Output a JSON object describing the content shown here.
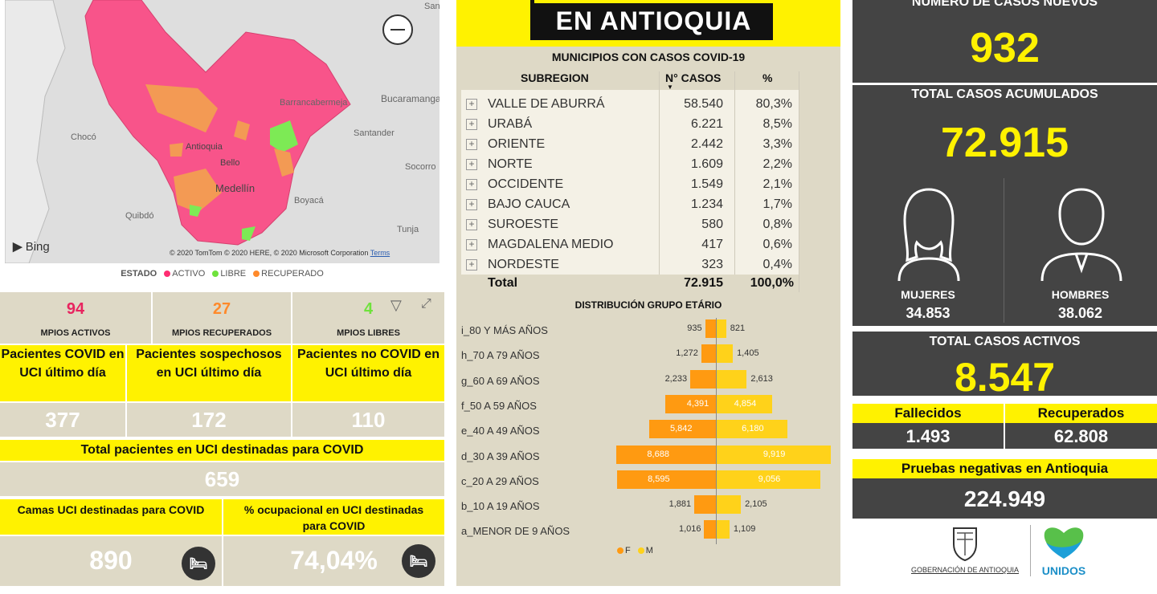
{
  "map": {
    "labels": {
      "chocó": "Chocó",
      "quibdo": "Quibdó",
      "antioquia": "Antioquia",
      "bello": "Bello",
      "medellin": "Medellín",
      "barrancabermeja": "Barrancabermeja",
      "bucaramanga": "Bucaramanga",
      "santander": "Santander",
      "socorro": "Socorro",
      "boyaca": "Boyacá",
      "tunja": "Tunja",
      "sant": "Sant"
    },
    "bing": "Bing",
    "copyright": "© 2020 TomTom © 2020 HERE, © 2020 Microsoft Corporation",
    "terms": "Terms",
    "legend_label": "ESTADO",
    "legend_items": [
      {
        "label": "ACTIVO",
        "color": "#ff4d7f"
      },
      {
        "label": "LIBRE",
        "color": "#7cf04a"
      },
      {
        "label": "RECUPERADO",
        "color": "#ff8a2b"
      }
    ]
  },
  "mpios": [
    {
      "value": "94",
      "label": "MPIOS ACTIVOS",
      "color": "#e8245f"
    },
    {
      "value": "27",
      "label": "MPIOS RECUPERADOS",
      "color": "#ff8a2b"
    },
    {
      "value": "4",
      "label": "MPIOS LIBRES",
      "color": "#7cf04a"
    }
  ],
  "uci": [
    {
      "label": "Pacientes COVID en UCI último día",
      "value": "377"
    },
    {
      "label": "Pacientes sospechosos en UCI último día",
      "value": "172"
    },
    {
      "label": "Pacientes no COVID en UCI último día",
      "value": "110"
    }
  ],
  "uci_total": {
    "label": "Total pacientes en UCI destinadas para COVID",
    "value": "659"
  },
  "camas": {
    "label": "Camas UCI destinadas para COVID",
    "value": "890"
  },
  "ocupacion": {
    "label": "% ocupacional en UCI destinadas para COVID",
    "value": "74,04%"
  },
  "header": {
    "title": "EN ANTIOQUIA"
  },
  "municipios": {
    "title": "MUNICIPIOS CON CASOS COVID-19",
    "col_subregion": "SUBREGION",
    "col_casos": "N° CASOS",
    "col_pct": "%",
    "rows": [
      {
        "name": "VALLE DE ABURRÁ",
        "cases": "58.540",
        "pct": "80,3%"
      },
      {
        "name": "URABÁ",
        "cases": "6.221",
        "pct": "8,5%"
      },
      {
        "name": "ORIENTE",
        "cases": "2.442",
        "pct": "3,3%"
      },
      {
        "name": "NORTE",
        "cases": "1.609",
        "pct": "2,2%"
      },
      {
        "name": "OCCIDENTE",
        "cases": "1.549",
        "pct": "2,1%"
      },
      {
        "name": "BAJO CAUCA",
        "cases": "1.234",
        "pct": "1,7%"
      },
      {
        "name": "SUROESTE",
        "cases": "580",
        "pct": "0,8%"
      },
      {
        "name": "MAGDALENA MEDIO",
        "cases": "417",
        "pct": "0,6%"
      },
      {
        "name": "NORDESTE",
        "cases": "323",
        "pct": "0,4%"
      }
    ],
    "total_label": "Total",
    "total_cases": "72.915",
    "total_pct": "100,0%"
  },
  "chart_data": {
    "type": "bar",
    "title": "DISTRIBUCIÓN GRUPO ETÁRIO",
    "categories": [
      "i_80 Y MÁS AÑOS",
      "h_70 A 79 AÑOS",
      "g_60 A 69 AÑOS",
      "f_50 A 59 AÑOS",
      "e_40 A 49 AÑOS",
      "d_30 A 39 AÑOS",
      "c_20 A 29 AÑOS",
      "b_10 A 19 AÑOS",
      "a_MENOR DE 9 AÑOS"
    ],
    "series": [
      {
        "name": "F",
        "color": "#ff9a11",
        "values": [
          935,
          1272,
          2233,
          4391,
          5842,
          8688,
          8595,
          1881,
          1016
        ]
      },
      {
        "name": "M",
        "color": "#ffd21a",
        "values": [
          821,
          1405,
          2613,
          4854,
          6180,
          9919,
          9056,
          2105,
          1109
        ]
      }
    ],
    "labels_f": [
      "935",
      "1,272",
      "2,233",
      "4,391",
      "5,842",
      "8,688",
      "8,595",
      "1,881",
      "1,016"
    ],
    "labels_m": [
      "821",
      "1,405",
      "2,613",
      "4,854",
      "6,180",
      "9,919",
      "9,056",
      "2,105",
      "1,109"
    ]
  },
  "right": {
    "new_cases_title": "NÚMERO DE CASOS NUEVOS",
    "new_cases": "932",
    "total_title": "TOTAL CASOS ACUMULADOS",
    "total": "72.915",
    "women_label": "MUJERES",
    "women": "34.853",
    "men_label": "HOMBRES",
    "men": "38.062",
    "active_title": "TOTAL CASOS ACTIVOS",
    "active": "8.547",
    "deaths_label": "Fallecidos",
    "deaths": "1.493",
    "recovered_label": "Recuperados",
    "recovered": "62.808",
    "negative_label": "Pruebas negativas en Antioquia",
    "negative": "224.949",
    "gob_label": "GOBERNACIÓN DE ANTIOQUIA",
    "unidos_label": "UNIDOS"
  }
}
